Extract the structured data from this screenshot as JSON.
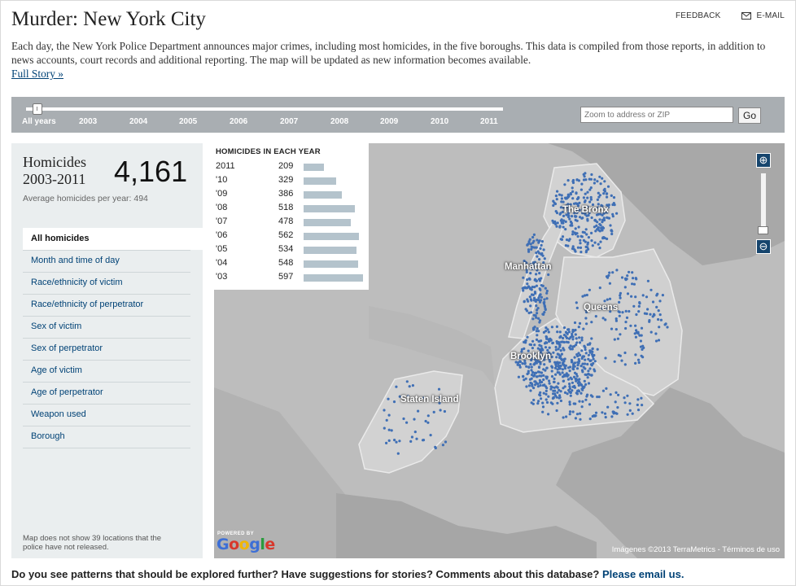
{
  "header": {
    "title": "Murder: New York City",
    "feedback_label": "FEEDBACK",
    "email_label": "E-MAIL",
    "intro": "Each day, the New York Police Department announces major crimes, including most homicides, in the five boroughs. This data is compiled from those reports, in addition to news accounts, court records and additional reporting. The map will be updated as new information becomes available.",
    "full_story": "Full Story »"
  },
  "timeline": {
    "years": [
      "All years",
      "2003",
      "2004",
      "2005",
      "2006",
      "2007",
      "2008",
      "2009",
      "2010",
      "2011"
    ],
    "selected": "All years",
    "zoom_placeholder": "Zoom to address or ZIP",
    "go_label": "Go"
  },
  "sidebar": {
    "heading": "Homicides",
    "years_range": "2003-2011",
    "total": "4,161",
    "average": "Average homicides per year: 494",
    "menu": [
      {
        "label": "All homicides",
        "active": true
      },
      {
        "label": "Month and time of day"
      },
      {
        "label": "Race/ethnicity of victim"
      },
      {
        "label": "Race/ethnicity of perpetrator"
      },
      {
        "label": "Sex of victim"
      },
      {
        "label": "Sex of perpetrator"
      },
      {
        "label": "Age of victim"
      },
      {
        "label": "Age of perpetrator"
      },
      {
        "label": "Weapon used"
      },
      {
        "label": "Borough"
      }
    ],
    "footnote": "Map does not show 39 locations that the police have not released."
  },
  "chart_data": {
    "type": "bar",
    "title": "HOMICIDES IN EACH YEAR",
    "categories": [
      "2011",
      "'10",
      "'09",
      "'08",
      "'07",
      "'06",
      "'05",
      "'04",
      "'03"
    ],
    "values": [
      209,
      329,
      386,
      518,
      478,
      562,
      534,
      548,
      597
    ],
    "colors": {
      "bar": "#b4c3cc"
    }
  },
  "map": {
    "labels": [
      "The Bronx",
      "Manhattan",
      "Queens",
      "Brooklyn",
      "Staten Island"
    ],
    "powered_by": "POWERED BY",
    "logo": "Google",
    "attribution": "Imágenes ©2013 TerraMetrics - Términos de uso",
    "dot_color": "#3f6fb5",
    "zoom_in_icon": "zoom-in-icon",
    "zoom_out_icon": "zoom-out-icon"
  },
  "footer": {
    "question": "Do you see patterns that should be explored further? Have suggestions for stories? Comments about this database?",
    "link": "Please email us."
  }
}
